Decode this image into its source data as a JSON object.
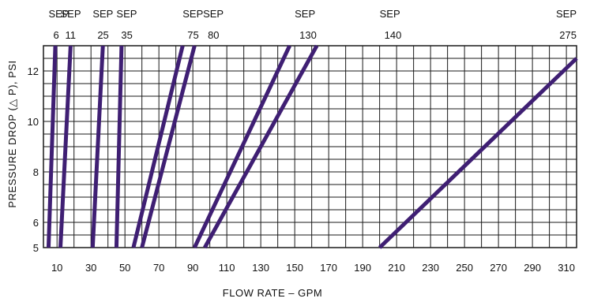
{
  "chart_data": {
    "type": "line",
    "title": "",
    "xlabel": "FLOW RATE – GPM",
    "ylabel": "PRESSURE DROP (△ P), PSI",
    "x_ticks": [
      10,
      30,
      50,
      70,
      90,
      110,
      130,
      150,
      170,
      190,
      210,
      230,
      250,
      270,
      290,
      310
    ],
    "y_ticks": [
      5,
      6,
      8,
      10,
      12
    ],
    "xlim": [
      2,
      316
    ],
    "ylim": [
      5,
      13
    ],
    "grid": true,
    "line_color": "#3f1f73",
    "grid_color": "#1a1a1a",
    "series": [
      {
        "name": [
          "SEP",
          "6"
        ],
        "points": [
          [
            5,
            5
          ],
          [
            9,
            13
          ]
        ]
      },
      {
        "name": [
          "SEP",
          "11"
        ],
        "points": [
          [
            12,
            5
          ],
          [
            18,
            13
          ]
        ]
      },
      {
        "name": [
          "SEP",
          "25"
        ],
        "points": [
          [
            31,
            5
          ],
          [
            37,
            13
          ]
        ]
      },
      {
        "name": [
          "SEP",
          "35"
        ],
        "points": [
          [
            45,
            5
          ],
          [
            48,
            13
          ]
        ]
      },
      {
        "name": [
          "SEP",
          "75"
        ],
        "points": [
          [
            55,
            5
          ],
          [
            84,
            13
          ]
        ]
      },
      {
        "name": [
          "SEP",
          "80"
        ],
        "points": [
          [
            60,
            5
          ],
          [
            91,
            13
          ]
        ]
      },
      {
        "name": [
          "SEP",
          "130"
        ],
        "points": [
          [
            91,
            5
          ],
          [
            147,
            13
          ]
        ]
      },
      {
        "name": [
          "SEP",
          "140"
        ],
        "points": [
          [
            97,
            5
          ],
          [
            163,
            13
          ]
        ]
      },
      {
        "name": [
          "SEP",
          "275"
        ],
        "points": [
          [
            200,
            5
          ],
          [
            316,
            12.5
          ]
        ]
      }
    ],
    "series_label_positions": [
      {
        "x": 5,
        "align": "start"
      },
      {
        "x": 12,
        "align": "start"
      },
      {
        "x": 31,
        "align": "start"
      },
      {
        "x": 45,
        "align": "start"
      },
      {
        "x": 84,
        "align": "start"
      },
      {
        "x": 96,
        "align": "start"
      },
      {
        "x": 150,
        "align": "start"
      },
      {
        "x": 200,
        "align": "start"
      },
      {
        "x": 316,
        "align": "end"
      }
    ]
  }
}
